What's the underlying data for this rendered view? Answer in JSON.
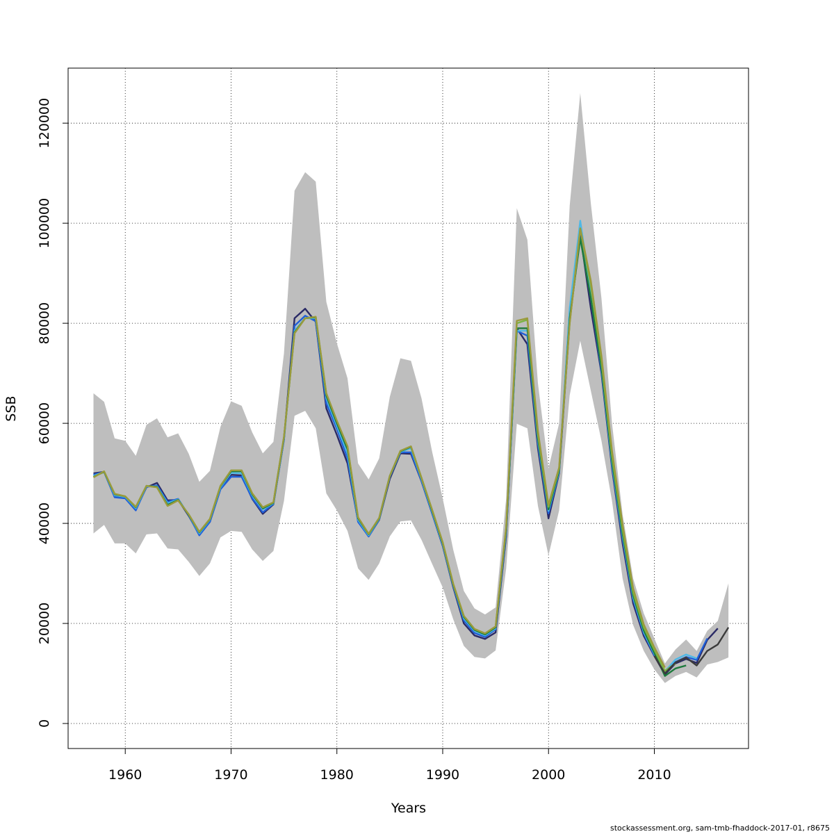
{
  "chart_data": {
    "type": "line",
    "xlabel": "Years",
    "ylabel": "SSB",
    "xlim": [
      1954.6,
      2018.9
    ],
    "ylim": [
      -5000,
      131000
    ],
    "x_ticks": [
      1960,
      1970,
      1980,
      1990,
      2000,
      2010
    ],
    "y_ticks": [
      0,
      20000,
      40000,
      60000,
      80000,
      100000,
      120000
    ],
    "grid": true,
    "band": {
      "x": [
        1957,
        1958,
        1959,
        1960,
        1961,
        1962,
        1963,
        1964,
        1965,
        1966,
        1967,
        1968,
        1969,
        1970,
        1971,
        1972,
        1973,
        1974,
        1975,
        1976,
        1977,
        1978,
        1979,
        1980,
        1981,
        1982,
        1983,
        1984,
        1985,
        1986,
        1987,
        1988,
        1989,
        1990,
        1991,
        1992,
        1993,
        1994,
        1995,
        1996,
        1997,
        1998,
        1999,
        2000,
        2001,
        2002,
        2003,
        2004,
        2005,
        2006,
        2007,
        2008,
        2009,
        2010,
        2011,
        2012,
        2013,
        2014,
        2015,
        2016,
        2017
      ],
      "upper": [
        66000,
        64300,
        57000,
        56500,
        53500,
        59700,
        61000,
        57200,
        58000,
        53900,
        48300,
        50500,
        59300,
        64400,
        63500,
        58200,
        54000,
        56300,
        74000,
        106500,
        110200,
        108300,
        84300,
        76000,
        69000,
        52000,
        48800,
        53000,
        65300,
        73000,
        72500,
        65000,
        54300,
        45000,
        34700,
        26500,
        23000,
        21800,
        23200,
        45000,
        103000,
        96700,
        68000,
        51000,
        60000,
        103500,
        126000,
        104000,
        85000,
        60000,
        41800,
        29000,
        22000,
        17000,
        12000,
        14800,
        16800,
        14500,
        18500,
        20500,
        28000
      ],
      "lower": [
        38000,
        39700,
        36000,
        36000,
        34000,
        37800,
        38000,
        35000,
        34800,
        32300,
        29500,
        32000,
        37200,
        38500,
        38300,
        34800,
        32500,
        34500,
        44500,
        61500,
        62500,
        59000,
        46000,
        42600,
        38500,
        31000,
        28700,
        32000,
        37400,
        40400,
        40600,
        36700,
        31900,
        27200,
        20800,
        15500,
        13300,
        13000,
        14600,
        31000,
        59900,
        59000,
        43500,
        33600,
        42600,
        65600,
        76500,
        66500,
        56500,
        44500,
        29000,
        19700,
        14500,
        10800,
        8100,
        9500,
        10300,
        9200,
        11800,
        12300,
        13200
      ]
    },
    "series": [
      {
        "color": "#2a2a66",
        "x": [
          1957,
          1958,
          1959,
          1960,
          1961,
          1962,
          1963,
          1964,
          1965,
          1966,
          1967,
          1968,
          1969,
          1970,
          1971,
          1972,
          1973,
          1974,
          1975,
          1976,
          1977,
          1978,
          1979,
          1980,
          1981,
          1982,
          1983,
          1984,
          1985,
          1986,
          1987,
          1988,
          1989,
          1990,
          1991,
          1992,
          1993,
          1994,
          1995,
          1996,
          1997,
          1998,
          1999,
          2000,
          2001,
          2002,
          2003,
          2004,
          2005,
          2006,
          2007,
          2008,
          2009,
          2010,
          2011,
          2012,
          2013,
          2014,
          2015,
          2016
        ],
        "values": [
          50000,
          50300,
          45300,
          45100,
          42800,
          47200,
          48100,
          44600,
          44700,
          41500,
          37800,
          40300,
          46900,
          49700,
          49600,
          44900,
          41900,
          43800,
          56800,
          81000,
          82900,
          80300,
          63000,
          57700,
          52000,
          40500,
          37400,
          40700,
          48900,
          54000,
          53900,
          48400,
          42000,
          35500,
          27200,
          20000,
          17600,
          16900,
          18200,
          37500,
          79000,
          75800,
          55000,
          41000,
          50000,
          80400,
          97800,
          83000,
          70000,
          51000,
          36000,
          24000,
          17500,
          13500,
          9800,
          12000,
          12900,
          12100,
          16700,
          19000
        ]
      },
      {
        "color": "#1f5fd8",
        "x": [
          1957,
          1958,
          1959,
          1960,
          1961,
          1962,
          1963,
          1964,
          1965,
          1966,
          1967,
          1968,
          1969,
          1970,
          1971,
          1972,
          1973,
          1974,
          1975,
          1976,
          1977,
          1978,
          1979,
          1980,
          1981,
          1982,
          1983,
          1984,
          1985,
          1986,
          1987,
          1988,
          1989,
          1990,
          1991,
          1992,
          1993,
          1994,
          1995,
          1996,
          1997,
          1998,
          1999,
          2000,
          2001,
          2002,
          2003,
          2004,
          2005,
          2006,
          2007,
          2008,
          2009,
          2010,
          2011,
          2012,
          2013,
          2014,
          2015
        ],
        "values": [
          49700,
          50300,
          45200,
          45000,
          42600,
          47300,
          47600,
          44300,
          44900,
          41600,
          37600,
          40300,
          46800,
          49300,
          49300,
          45000,
          42200,
          43900,
          56700,
          79500,
          81500,
          80400,
          64000,
          58900,
          53000,
          40300,
          37400,
          40800,
          49300,
          54200,
          54200,
          48500,
          42000,
          35600,
          27400,
          20600,
          18100,
          17300,
          18800,
          38000,
          78500,
          77500,
          56000,
          42000,
          50200,
          82000,
          99000,
          85000,
          70500,
          51500,
          37000,
          24800,
          18000,
          13600,
          10100,
          12300,
          13300,
          12700,
          17000
        ]
      },
      {
        "color": "#4fb8e6",
        "x": [
          1957,
          1958,
          1959,
          1960,
          1961,
          1962,
          1963,
          1964,
          1965,
          1966,
          1967,
          1968,
          1969,
          1970,
          1971,
          1972,
          1973,
          1974,
          1975,
          1976,
          1977,
          1978,
          1979,
          1980,
          1981,
          1982,
          1983,
          1984,
          1985,
          1986,
          1987,
          1988,
          1989,
          1990,
          1991,
          1992,
          1993,
          1994,
          1995,
          1996,
          1997,
          1998,
          1999,
          2000,
          2001,
          2002,
          2003,
          2004,
          2005,
          2006,
          2007,
          2008,
          2009,
          2010,
          2011,
          2012,
          2013,
          2014
        ],
        "values": [
          49500,
          50300,
          45600,
          45300,
          43000,
          47400,
          47400,
          44000,
          44800,
          41700,
          38000,
          40700,
          47200,
          50100,
          50000,
          45600,
          42800,
          44000,
          57000,
          78500,
          81000,
          81000,
          65000,
          59500,
          54000,
          40700,
          37600,
          40900,
          49400,
          54300,
          55000,
          48800,
          42300,
          35800,
          27600,
          21000,
          18500,
          17600,
          19000,
          38500,
          78500,
          78500,
          56500,
          42500,
          50400,
          83000,
          100500,
          86000,
          71000,
          52000,
          37500,
          25200,
          18300,
          13900,
          10400,
          12800,
          13800,
          13000
        ]
      },
      {
        "color": "#1d7a3c",
        "x": [
          1957,
          1958,
          1959,
          1960,
          1961,
          1962,
          1963,
          1964,
          1965,
          1966,
          1967,
          1968,
          1969,
          1970,
          1971,
          1972,
          1973,
          1974,
          1975,
          1976,
          1977,
          1978,
          1979,
          1980,
          1981,
          1982,
          1983,
          1984,
          1985,
          1986,
          1987,
          1988,
          1989,
          1990,
          1991,
          1992,
          1993,
          1994,
          1995,
          1996,
          1997,
          1998,
          1999,
          2000,
          2001,
          2002,
          2003,
          2004,
          2005,
          2006,
          2007,
          2008,
          2009,
          2010,
          2011,
          2012,
          2013
        ],
        "values": [
          49300,
          50300,
          45800,
          45400,
          43200,
          47500,
          47300,
          43700,
          44700,
          41700,
          38200,
          40800,
          47400,
          50400,
          50400,
          45800,
          43000,
          44100,
          57200,
          78200,
          81000,
          81200,
          65500,
          60000,
          54800,
          41000,
          37800,
          41000,
          49500,
          54400,
          55300,
          49000,
          42500,
          36000,
          27700,
          21300,
          18700,
          17800,
          19200,
          38800,
          79000,
          79000,
          57000,
          42800,
          50600,
          81000,
          97000,
          85000,
          71200,
          52500,
          38000,
          25600,
          18600,
          14100,
          9500,
          11000,
          11600
        ]
      },
      {
        "color": "#7cb342",
        "x": [
          1957,
          1958,
          1959,
          1960,
          1961,
          1962,
          1963,
          1964,
          1965,
          1966,
          1967,
          1968,
          1969,
          1970,
          1971,
          1972,
          1973,
          1974,
          1975,
          1976,
          1977,
          1978,
          1979,
          1980,
          1981,
          1982,
          1983,
          1984,
          1985,
          1986,
          1987,
          1988,
          1989,
          1990,
          1991,
          1992,
          1993,
          1994,
          1995,
          1996,
          1997,
          1998,
          1999,
          2000,
          2001,
          2002,
          2003,
          2004,
          2005,
          2006,
          2007,
          2008,
          2009,
          2010,
          2011,
          2012
        ],
        "values": [
          49200,
          50400,
          45900,
          45400,
          43300,
          47500,
          47200,
          43500,
          44600,
          41800,
          38300,
          40900,
          47500,
          50600,
          50600,
          46000,
          43200,
          44200,
          57300,
          78000,
          81000,
          81300,
          66000,
          60500,
          55400,
          41200,
          37900,
          41100,
          49500,
          54500,
          55400,
          49100,
          42700,
          36200,
          27900,
          21500,
          18900,
          18000,
          19400,
          39200,
          80000,
          80700,
          57800,
          43300,
          51000,
          80000,
          98800,
          87500,
          72500,
          53500,
          38800,
          26200,
          19200,
          14700,
          10500,
          12000
        ]
      },
      {
        "color": "#9a9a3c",
        "x": [
          1957,
          1958,
          1959,
          1960,
          1961,
          1962,
          1963,
          1964,
          1965,
          1966,
          1967,
          1968,
          1969,
          1970,
          1971,
          1972,
          1973,
          1974,
          1975,
          1976,
          1977,
          1978,
          1979,
          1980,
          1981,
          1982,
          1983,
          1984,
          1985,
          1986,
          1987,
          1988,
          1989,
          1990,
          1991,
          1992,
          1993,
          1994,
          1995,
          1996,
          1997,
          1998,
          1999,
          2000,
          2001,
          2002,
          2003,
          2004,
          2005,
          2006,
          2007,
          2008,
          2009,
          2010,
          2011
        ],
        "values": [
          49200,
          50400,
          45900,
          45400,
          43300,
          47500,
          47200,
          43500,
          44600,
          41800,
          38300,
          40900,
          47500,
          50600,
          50600,
          46000,
          43200,
          44200,
          57300,
          78000,
          81000,
          81300,
          66000,
          60500,
          55400,
          41200,
          37900,
          41100,
          49500,
          54500,
          55400,
          49100,
          42700,
          36200,
          27900,
          21500,
          18900,
          18000,
          19400,
          39200,
          80500,
          81000,
          58500,
          43700,
          51200,
          80000,
          99000,
          88500,
          73500,
          54500,
          39800,
          27000,
          19800,
          15200,
          11200
        ]
      },
      {
        "color": "#3b3b3b",
        "x": [
          2010,
          2011,
          2012,
          2013,
          2014,
          2015,
          2016,
          2017
        ],
        "values": [
          13500,
          10000,
          12200,
          13200,
          11600,
          14500,
          15800,
          19200
        ]
      }
    ]
  },
  "footer": "stockassessment.org, sam-tmb-fhaddock-2017-01, r8675"
}
